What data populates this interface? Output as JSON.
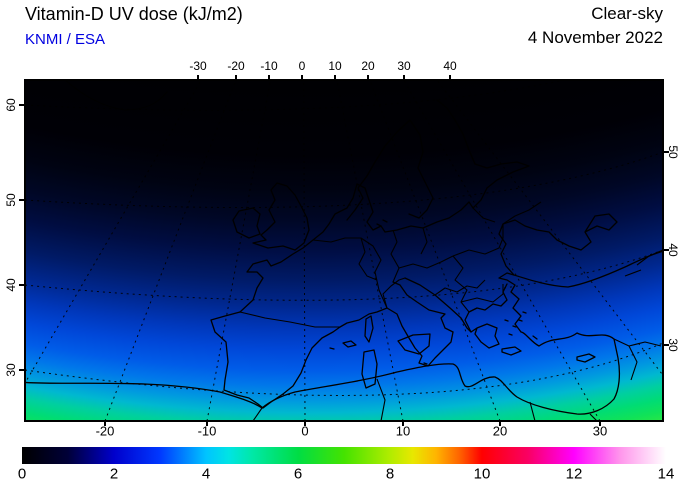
{
  "header": {
    "title": "Vitamin-D UV dose (kJ/m2)",
    "source": "KNMI / ESA",
    "condition": "Clear-sky",
    "date": "4 November 2022"
  },
  "colors": {
    "title_text": "#000000",
    "source_text": "#0000e0",
    "frame": "#000000",
    "coastline": "#000000"
  },
  "axes": {
    "top": {
      "unit": "longitude_deg",
      "ticks": [
        "-30",
        "-20",
        "-10",
        "0",
        "10",
        "20",
        "30",
        "40"
      ]
    },
    "bottom": {
      "unit": "longitude_deg",
      "ticks": [
        "-20",
        "-10",
        "0",
        "10",
        "20",
        "30"
      ]
    },
    "left": {
      "unit": "latitude_deg",
      "ticks": [
        "60",
        "50",
        "40",
        "30"
      ]
    },
    "right": {
      "unit": "latitude_deg",
      "ticks": [
        "50",
        "40",
        "30"
      ]
    }
  },
  "colorbar": {
    "min": 0,
    "max": 14,
    "ticks": [
      "0",
      "2",
      "4",
      "6",
      "8",
      "10",
      "12",
      "14"
    ],
    "stops": [
      {
        "o": 0.0,
        "c": "#000000"
      },
      {
        "o": 0.071,
        "c": "#000038"
      },
      {
        "o": 0.143,
        "c": "#0000cc"
      },
      {
        "o": 0.214,
        "c": "#0038ff"
      },
      {
        "o": 0.286,
        "c": "#00c4ff"
      },
      {
        "o": 0.321,
        "c": "#00e4e4"
      },
      {
        "o": 0.357,
        "c": "#00e8a8"
      },
      {
        "o": 0.429,
        "c": "#00dd44"
      },
      {
        "o": 0.5,
        "c": "#44e300"
      },
      {
        "o": 0.571,
        "c": "#b0ec00"
      },
      {
        "o": 0.607,
        "c": "#e8e800"
      },
      {
        "o": 0.643,
        "c": "#ffb400"
      },
      {
        "o": 0.679,
        "c": "#ff6400"
      },
      {
        "o": 0.714,
        "c": "#ff0000"
      },
      {
        "o": 0.786,
        "c": "#fa0064"
      },
      {
        "o": 0.857,
        "c": "#ff00ff"
      },
      {
        "o": 0.929,
        "c": "#ff96ec"
      },
      {
        "o": 1.0,
        "c": "#ffffff"
      }
    ]
  },
  "map": {
    "field_stops": [
      {
        "o": 0.7,
        "c": "#000000"
      },
      {
        "o": 0.78,
        "c": "#000006"
      },
      {
        "o": 0.8,
        "c": "#000312"
      },
      {
        "o": 0.818,
        "c": "#000726"
      },
      {
        "o": 0.835,
        "c": "#000d42"
      },
      {
        "o": 0.853,
        "c": "#001a66"
      },
      {
        "o": 0.868,
        "c": "#00278e"
      },
      {
        "o": 0.882,
        "c": "#0037ba"
      },
      {
        "o": 0.894,
        "c": "#0047d8"
      },
      {
        "o": 0.906,
        "c": "#005ce8"
      },
      {
        "o": 0.915,
        "c": "#0077ea"
      },
      {
        "o": 0.924,
        "c": "#0099e0"
      },
      {
        "o": 0.931,
        "c": "#00b8d0"
      },
      {
        "o": 0.938,
        "c": "#00cfa0"
      },
      {
        "o": 0.946,
        "c": "#00dc74"
      },
      {
        "o": 0.953,
        "c": "#10e258"
      },
      {
        "o": 0.962,
        "c": "#38e93c"
      },
      {
        "o": 1.0,
        "c": "#74f030"
      }
    ]
  },
  "chart_data": {
    "type": "heatmap",
    "title": "Vitamin-D UV dose (kJ/m2)",
    "subtitle": "Clear-sky, 4 November 2022",
    "provider": "KNMI / ESA",
    "units": "kJ/m2",
    "region": "Europe / North Africa / Mediterranean",
    "scale_min": 0,
    "scale_max": 14,
    "scale_ticks": [
      0,
      2,
      4,
      6,
      8,
      10,
      12,
      14
    ],
    "lon_ticks_top": [
      -30,
      -20,
      -10,
      0,
      10,
      20,
      30,
      40
    ],
    "lon_ticks_bottom": [
      -20,
      -10,
      0,
      10,
      20,
      30
    ],
    "lat_ticks": [
      30,
      40,
      50,
      60
    ],
    "estimated_dose_by_latitude": [
      {
        "lat": 60,
        "dose": 0.1
      },
      {
        "lat": 55,
        "dose": 0.4
      },
      {
        "lat": 50,
        "dose": 0.9
      },
      {
        "lat": 45,
        "dose": 1.7
      },
      {
        "lat": 40,
        "dose": 2.8
      },
      {
        "lat": 35,
        "dose": 4.2
      },
      {
        "lat": 30,
        "dose": 5.5
      },
      {
        "lat": 27,
        "dose": 6.5
      }
    ],
    "legend_position": "bottom",
    "grid": "dashed graticule every 10 degrees"
  }
}
